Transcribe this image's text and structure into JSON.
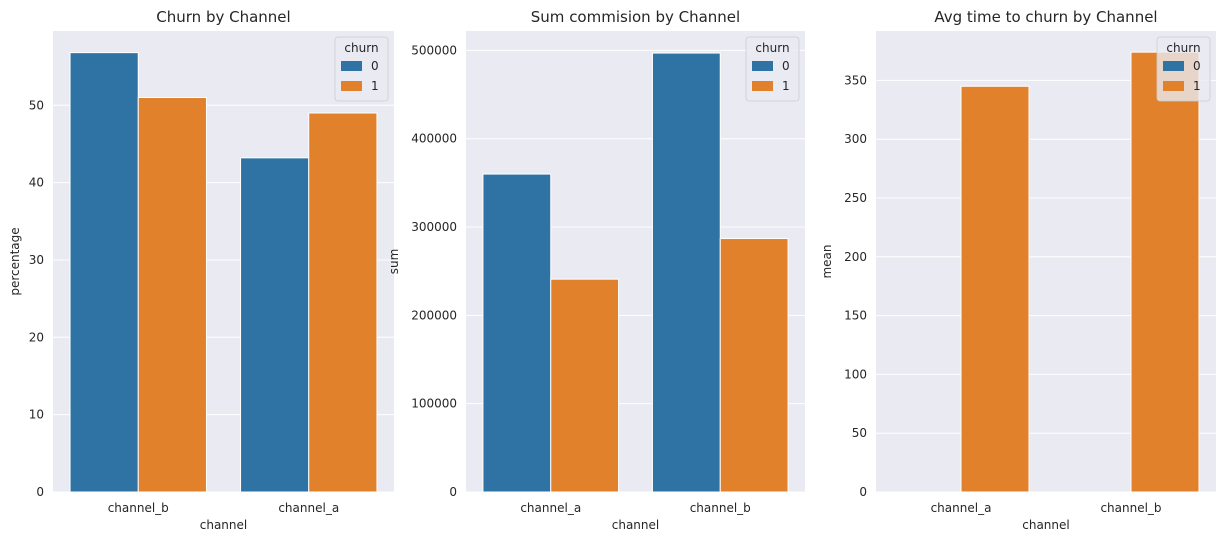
{
  "colors": {
    "background": "#EAEAF2",
    "grid": "#FFFFFF",
    "series_0": "#2E73A4",
    "series_1": "#E1812C"
  },
  "chart_data": [
    {
      "type": "bar",
      "title": "Churn by Channel",
      "xlabel": "channel",
      "ylabel": "percentage",
      "categories": [
        "channel_b",
        "channel_a"
      ],
      "series": [
        {
          "name": "0",
          "values": [
            56.8,
            43.2
          ]
        },
        {
          "name": "1",
          "values": [
            51.0,
            49.0
          ]
        }
      ],
      "ylim": [
        0,
        59.6
      ],
      "yticks": [
        0,
        10,
        20,
        30,
        40,
        50
      ],
      "ytick_labels": [
        "0",
        "10",
        "20",
        "30",
        "40",
        "50"
      ],
      "legend_title": "churn",
      "legend_position": "top-right",
      "grid": true
    },
    {
      "type": "bar",
      "title": "Sum commision by Channel",
      "xlabel": "channel",
      "ylabel": "sum",
      "categories": [
        "channel_a",
        "channel_b"
      ],
      "series": [
        {
          "name": "0",
          "values": [
            360000,
            497000
          ]
        },
        {
          "name": "1",
          "values": [
            241000,
            287000
          ]
        }
      ],
      "ylim": [
        0,
        522000
      ],
      "yticks": [
        0,
        100000,
        200000,
        300000,
        400000,
        500000
      ],
      "ytick_labels": [
        "0",
        "100000",
        "200000",
        "300000",
        "400000",
        "500000"
      ],
      "legend_title": "churn",
      "legend_position": "top-right",
      "grid": true
    },
    {
      "type": "bar",
      "title": "Avg time to churn by Channel",
      "xlabel": "channel",
      "ylabel": "mean",
      "categories": [
        "channel_a",
        "channel_b"
      ],
      "series": [
        {
          "name": "0",
          "values": [
            null,
            null
          ]
        },
        {
          "name": "1",
          "values": [
            345,
            374
          ]
        }
      ],
      "ylim": [
        0,
        392
      ],
      "yticks": [
        0,
        50,
        100,
        150,
        200,
        250,
        300,
        350
      ],
      "ytick_labels": [
        "0",
        "50",
        "100",
        "150",
        "200",
        "250",
        "300",
        "350"
      ],
      "legend_title": "churn",
      "legend_position": "top-right",
      "grid": true
    }
  ]
}
